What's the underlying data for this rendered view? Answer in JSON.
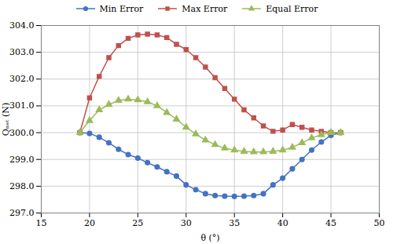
{
  "chart_data": {
    "type": "line",
    "xlabel": "θ (°)",
    "ylabel": "Qₙₑₜ (N)",
    "x": [
      19,
      20,
      21,
      22,
      23,
      24,
      25,
      26,
      27,
      28,
      29,
      30,
      31,
      32,
      33,
      34,
      35,
      36,
      37,
      38,
      39,
      40,
      41,
      42,
      43,
      44,
      45,
      46
    ],
    "series": [
      {
        "name": "Min Error",
        "color": "#4472C4",
        "marker": "circle",
        "values": [
          300.0,
          299.97,
          299.83,
          299.62,
          299.38,
          299.18,
          299.05,
          298.88,
          298.72,
          298.54,
          298.38,
          298.05,
          297.87,
          297.72,
          297.65,
          297.63,
          297.62,
          297.63,
          297.65,
          297.72,
          298.05,
          298.3,
          298.65,
          299.0,
          299.35,
          299.65,
          299.9,
          300.0
        ]
      },
      {
        "name": "Max Error",
        "color": "#C0504D",
        "marker": "square",
        "values": [
          300.0,
          301.3,
          302.1,
          302.8,
          303.25,
          303.52,
          303.65,
          303.68,
          303.65,
          303.55,
          303.3,
          303.1,
          302.8,
          302.45,
          302.05,
          301.65,
          301.25,
          300.85,
          300.55,
          300.25,
          300.05,
          300.1,
          300.3,
          300.2,
          300.1,
          300.05,
          300.0,
          300.0
        ]
      },
      {
        "name": "Equal Error",
        "color": "#9BBB59",
        "marker": "triangle",
        "values": [
          300.0,
          300.45,
          300.85,
          301.05,
          301.2,
          301.25,
          301.22,
          301.15,
          301.0,
          300.75,
          300.5,
          300.2,
          299.95,
          299.72,
          299.55,
          299.42,
          299.35,
          299.3,
          299.28,
          299.28,
          299.3,
          299.35,
          299.45,
          299.62,
          299.8,
          299.92,
          300.0,
          300.0
        ]
      }
    ],
    "xlim": [
      15,
      50
    ],
    "ylim": [
      297,
      304
    ],
    "xticks": [
      15,
      20,
      25,
      30,
      35,
      40,
      45,
      50
    ],
    "yticks": [
      297,
      298,
      299,
      300,
      301,
      302,
      303,
      304
    ],
    "grid": true,
    "legend": "top"
  }
}
